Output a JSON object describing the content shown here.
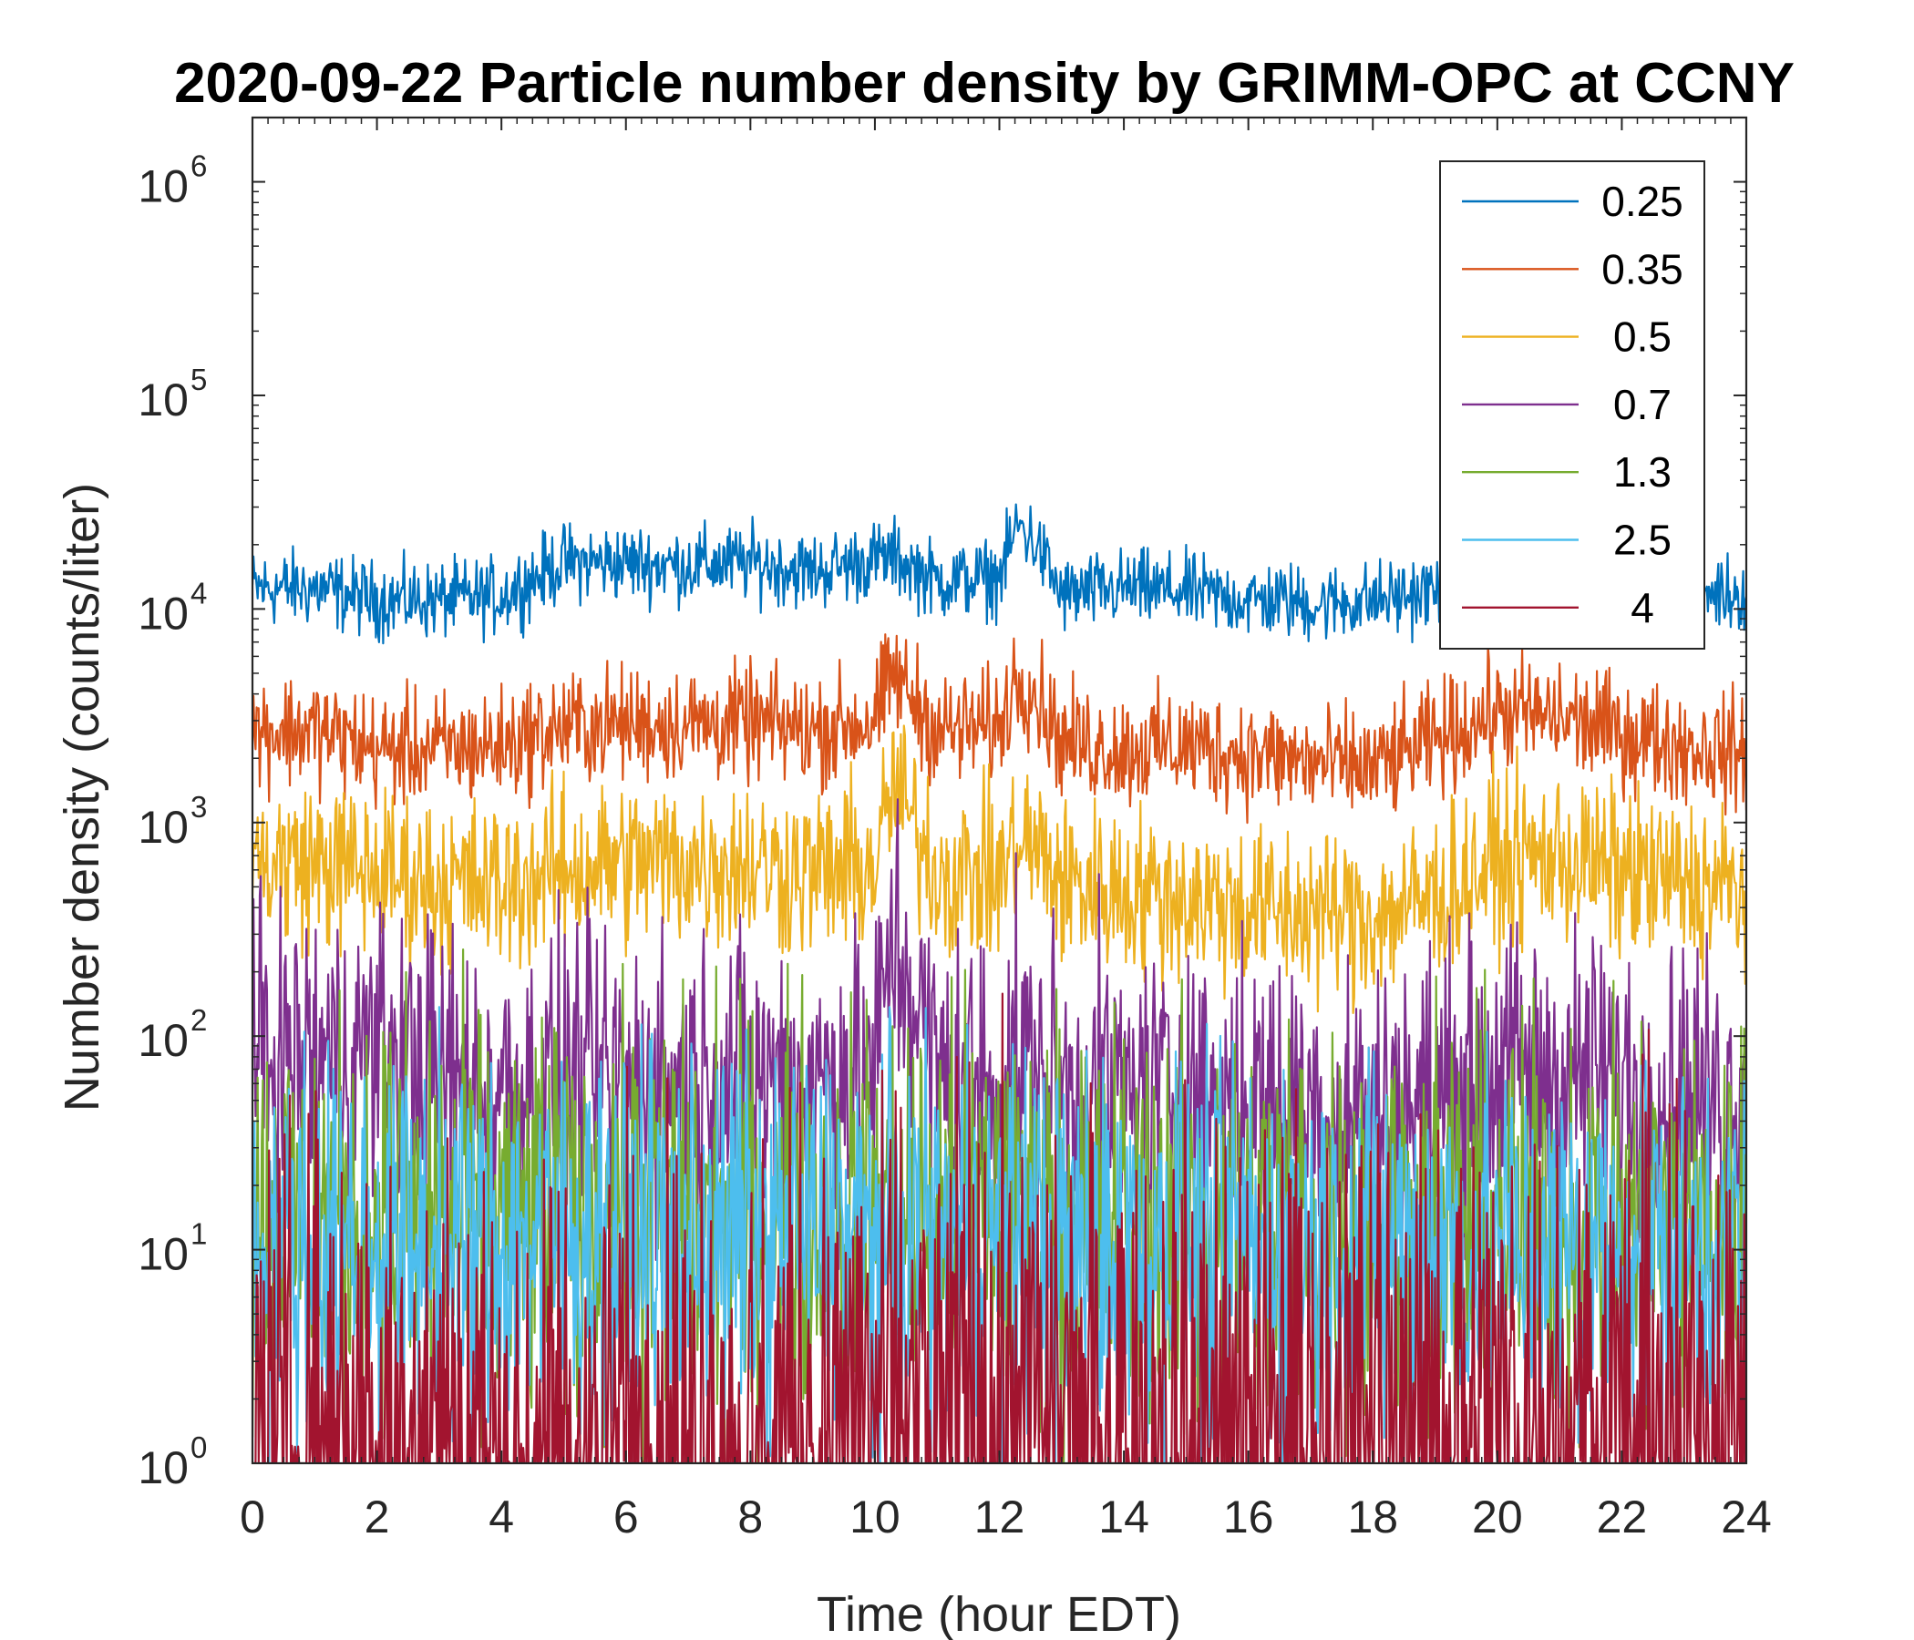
{
  "chart_data": {
    "type": "line",
    "title": "2020-09-22 Particle number density by GRIMM-OPC at CCNY",
    "xlabel": "Time (hour EDT)",
    "ylabel": "Number density (counts/liter)",
    "xlim": [
      0,
      24
    ],
    "ylim": [
      1,
      2000000
    ],
    "yscale": "log",
    "xticks": [
      "0",
      "2",
      "4",
      "6",
      "8",
      "10",
      "12",
      "14",
      "16",
      "18",
      "20",
      "22",
      "24"
    ],
    "yticks": [
      {
        "base": "10",
        "exp": "0"
      },
      {
        "base": "10",
        "exp": "1"
      },
      {
        "base": "10",
        "exp": "2"
      },
      {
        "base": "10",
        "exp": "3"
      },
      {
        "base": "10",
        "exp": "4"
      },
      {
        "base": "10",
        "exp": "5"
      },
      {
        "base": "10",
        "exp": "6"
      }
    ],
    "legend_position": "top-right",
    "x": [
      0,
      1,
      2,
      3,
      4,
      5,
      6,
      7,
      8,
      9,
      10,
      10.3,
      11,
      12,
      12.3,
      12.6,
      13,
      14,
      15,
      16,
      16.5,
      17,
      18,
      19,
      20,
      21,
      22,
      23,
      24
    ],
    "series": [
      {
        "name": "0.25",
        "color": "#0072bd",
        "noise": 0.04,
        "values": [
          12500,
          12500,
          11000,
          11000,
          11500,
          16500,
          16500,
          16000,
          16500,
          15000,
          17000,
          17500,
          13500,
          14000,
          25000,
          20000,
          11500,
          12500,
          12000,
          11000,
          11000,
          10500,
          11000,
          12000,
          13500,
          13000,
          12500,
          12000,
          12000
        ]
      },
      {
        "name": "0.35",
        "color": "#d95319",
        "noise": 0.06,
        "values": [
          2700,
          2700,
          2200,
          2200,
          2300,
          2800,
          2900,
          2900,
          2900,
          2700,
          3000,
          5000,
          2700,
          2800,
          5000,
          4000,
          2400,
          2200,
          2300,
          2100,
          2000,
          1900,
          1800,
          2400,
          3300,
          3100,
          2600,
          2300,
          2100
        ]
      },
      {
        "name": "0.5",
        "color": "#edb120",
        "noise": 0.09,
        "values": [
          650,
          650,
          580,
          520,
          500,
          600,
          650,
          650,
          640,
          580,
          620,
          1500,
          580,
          560,
          800,
          750,
          520,
          480,
          440,
          400,
          380,
          380,
          360,
          450,
          650,
          700,
          580,
          520,
          480
        ]
      },
      {
        "name": "0.7",
        "color": "#7e2f8e",
        "noise": 0.16,
        "values": [
          80,
          80,
          85,
          65,
          55,
          60,
          60,
          60,
          65,
          60,
          70,
          300,
          65,
          60,
          70,
          70,
          55,
          55,
          55,
          50,
          50,
          45,
          45,
          50,
          65,
          65,
          60,
          55,
          50
        ]
      },
      {
        "name": "1.3",
        "color": "#77ac30",
        "noise": 0.22,
        "values": [
          14,
          14,
          14,
          13,
          13,
          14,
          14,
          14,
          14,
          14,
          14,
          14,
          14,
          14,
          14,
          14,
          13,
          13,
          13,
          13,
          13,
          13,
          13,
          13,
          13,
          13,
          13,
          13,
          13
        ]
      },
      {
        "name": "2.5",
        "color": "#4dbeee",
        "noise": 0.2,
        "values": [
          11,
          11,
          10,
          10,
          10,
          11,
          11,
          11,
          11,
          11,
          11,
          11,
          11,
          11,
          11,
          11,
          10,
          10,
          10,
          10,
          10,
          10,
          10,
          10,
          10,
          10,
          10,
          10,
          10
        ]
      },
      {
        "name": "4",
        "color": "#a2142f",
        "noise": 0.3,
        "values": [
          2,
          2,
          2,
          2,
          2,
          2,
          2,
          2,
          2,
          2,
          2.5,
          2.5,
          2.5,
          2.5,
          2.5,
          2.5,
          2.5,
          2.5,
          2.5,
          2.5,
          2.5,
          2.5,
          2.5,
          2.5,
          2.5,
          2.5,
          2.5,
          2.5,
          2.5
        ]
      }
    ]
  }
}
